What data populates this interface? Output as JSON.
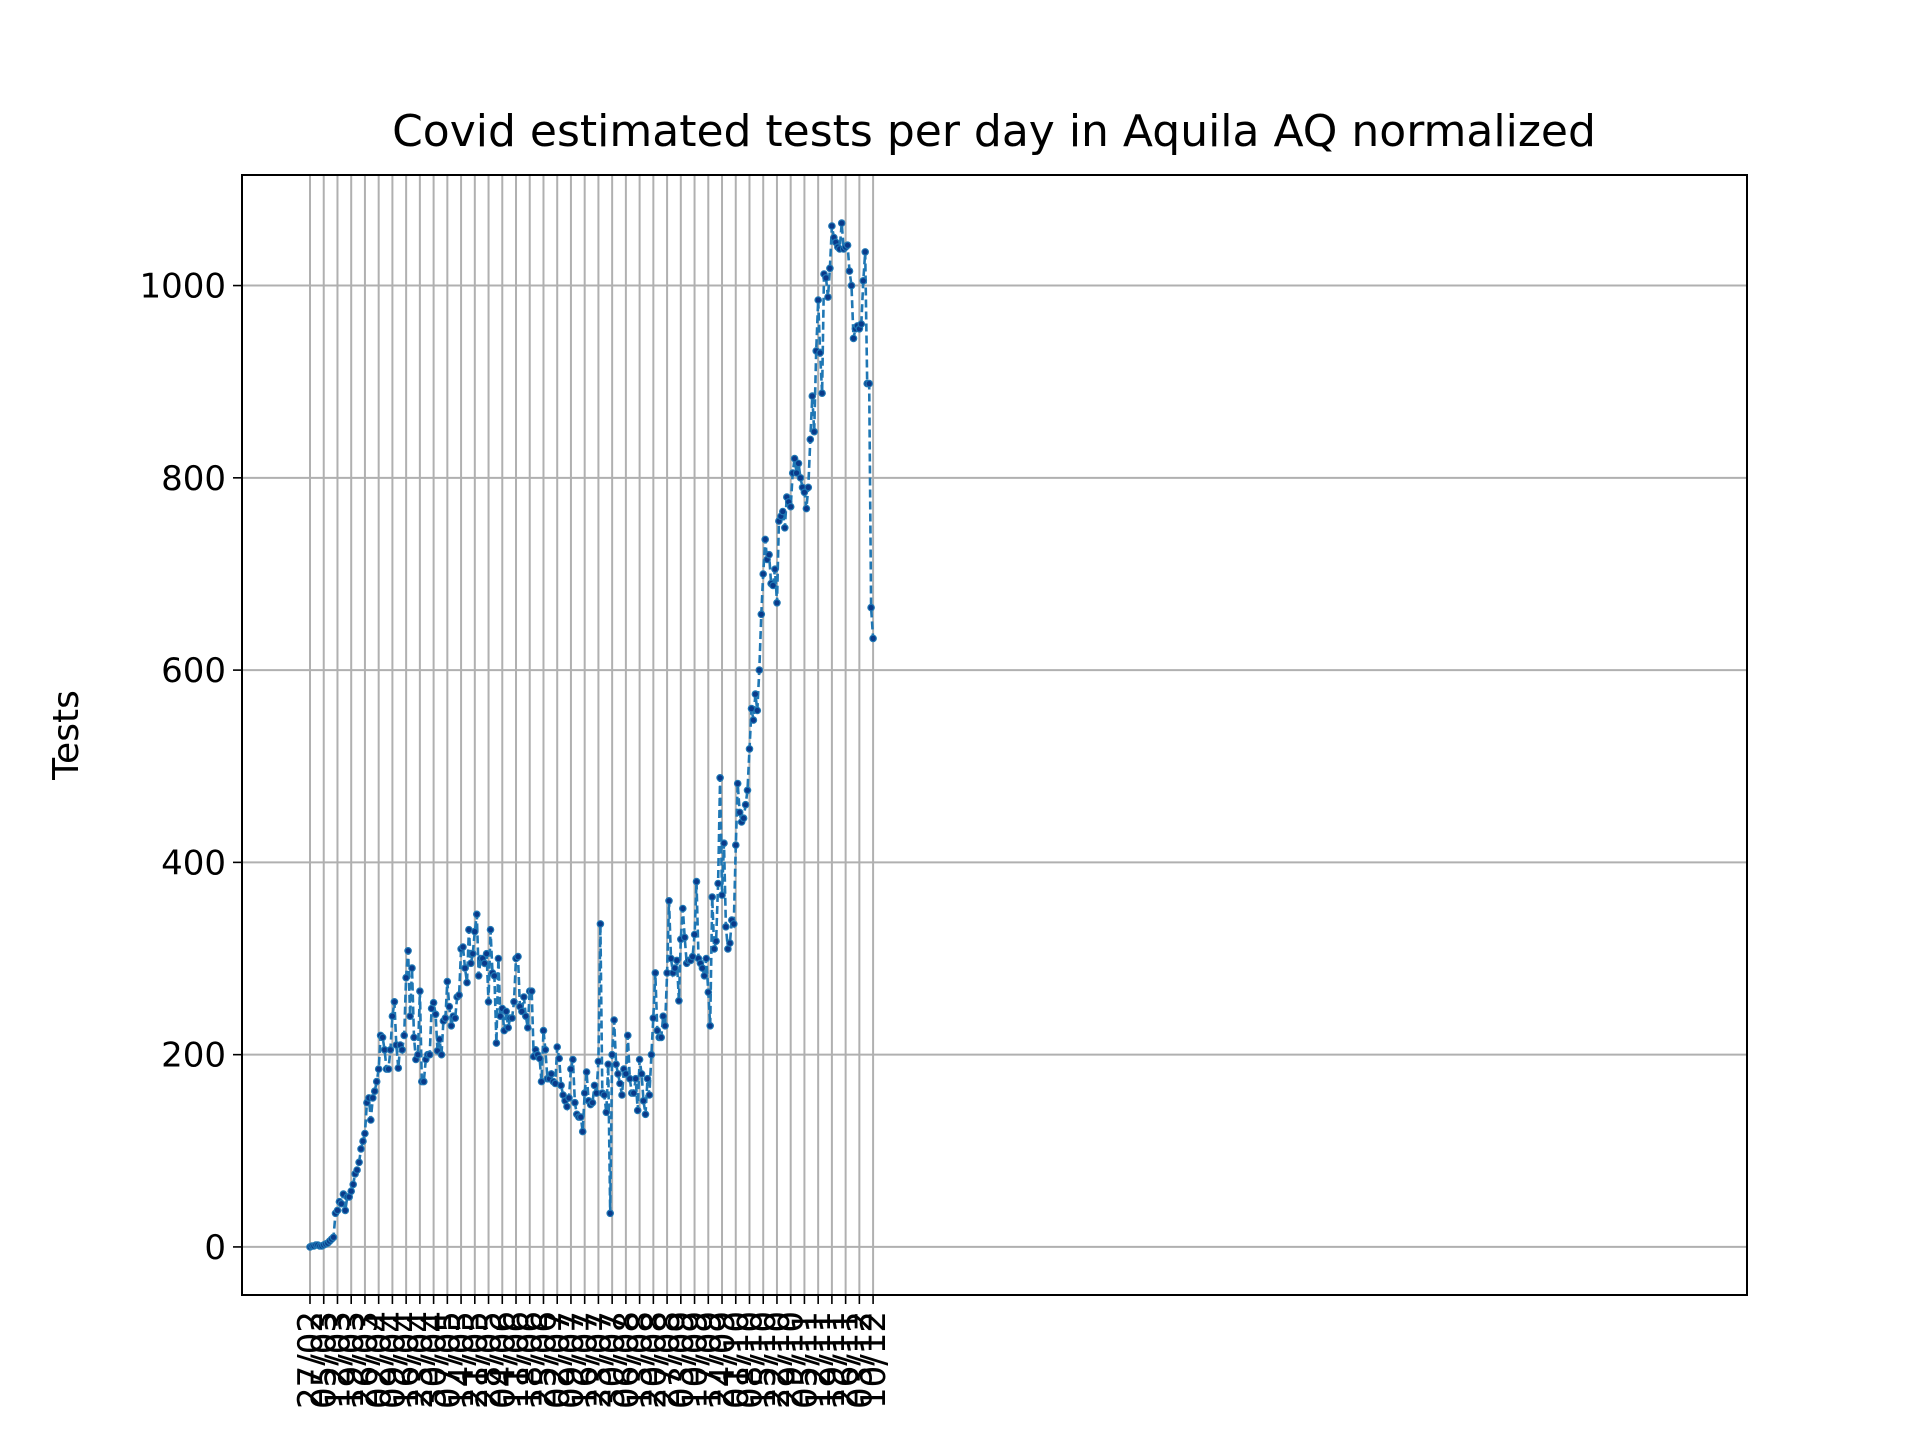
{
  "chart_data": {
    "type": "line",
    "title": "Covid estimated tests per day in Aquila AQ normalized",
    "ylabel": "Tests",
    "xlabel": "",
    "ylim": [
      -50,
      1115
    ],
    "yticks": [
      0,
      200,
      400,
      600,
      800,
      1000
    ],
    "grid": true,
    "line_color": "#1f77b4",
    "marker_color": "#0a3a8a",
    "line_style": "dashed",
    "x_tick_labels": [
      "27/02",
      "05/03",
      "12/03",
      "19/03",
      "26/03",
      "02/04",
      "09/04",
      "16/04",
      "23/04",
      "30/04",
      "07/05",
      "14/05",
      "21/05",
      "28/05",
      "04/06",
      "11/06",
      "18/06",
      "25/06",
      "02/07",
      "09/07",
      "16/07",
      "23/07",
      "30/07",
      "06/08",
      "13/08",
      "20/08",
      "27/08",
      "03/09",
      "10/09",
      "17/09",
      "24/09",
      "01/10",
      "08/10",
      "15/10",
      "22/10",
      "29/10",
      "05/11",
      "12/11",
      "19/11",
      "26/11",
      "03/12",
      "10/12"
    ],
    "start_date": "27/02",
    "series": [
      {
        "name": "",
        "values": [
          0,
          1,
          1,
          2,
          2,
          1,
          1,
          2,
          3,
          4,
          6,
          8,
          10,
          35,
          38,
          47,
          45,
          55,
          38,
          52,
          52,
          58,
          65,
          76,
          80,
          88,
          102,
          110,
          118,
          150,
          155,
          132,
          155,
          162,
          172,
          185,
          220,
          218,
          205,
          185,
          185,
          205,
          240,
          255,
          210,
          186,
          210,
          205,
          220,
          280,
          308,
          240,
          290,
          218,
          195,
          200,
          266,
          172,
          172,
          195,
          200,
          200,
          248,
          254,
          242,
          204,
          216,
          200,
          235,
          238,
          276,
          250,
          230,
          240,
          238,
          260,
          262,
          310,
          312,
          290,
          275,
          330,
          295,
          305,
          328,
          346,
          282,
          300,
          300,
          295,
          305,
          255,
          330,
          285,
          282,
          212,
          300,
          240,
          248,
          225,
          245,
          228,
          238,
          238,
          255,
          300,
          302,
          250,
          245,
          260,
          240,
          228,
          266,
          266,
          198,
          205,
          200,
          196,
          172,
          225,
          205,
          175,
          175,
          180,
          172,
          170,
          208,
          196,
          168,
          158,
          152,
          146,
          155,
          185,
          195,
          150,
          138,
          135,
          135,
          120,
          160,
          182,
          152,
          148,
          150,
          168,
          160,
          193,
          336,
          160,
          158,
          140,
          190,
          35,
          200,
          236,
          190,
          180,
          170,
          158,
          185,
          180,
          220,
          175,
          160,
          160,
          175,
          142,
          195,
          180,
          152,
          138,
          175,
          158,
          200,
          238,
          285,
          225,
          218,
          218,
          240,
          230,
          285,
          360,
          300,
          285,
          290,
          298,
          256,
          320,
          352,
          322,
          295,
          298,
          298,
          302,
          325,
          380,
          300,
          295,
          290,
          282,
          300,
          265,
          230,
          364,
          310,
          318,
          378,
          488,
          366,
          420,
          333,
          310,
          316,
          340,
          336,
          418,
          482,
          452,
          442,
          446,
          460,
          475,
          518,
          560,
          548,
          575,
          558,
          600,
          658,
          700,
          736,
          715,
          720,
          690,
          688,
          705,
          670,
          755,
          760,
          765,
          748,
          780,
          775,
          770,
          805,
          820,
          805,
          815,
          800,
          790,
          785,
          768,
          790,
          840,
          885,
          848,
          932,
          985,
          930,
          888,
          1012,
          1008,
          988,
          1018,
          1062,
          1050,
          1045,
          1040,
          1038,
          1065,
          1038,
          1040,
          1042,
          1015,
          1000,
          945,
          955,
          958,
          955,
          960,
          1005,
          1035,
          898,
          898,
          665,
          633
        ]
      }
    ]
  }
}
